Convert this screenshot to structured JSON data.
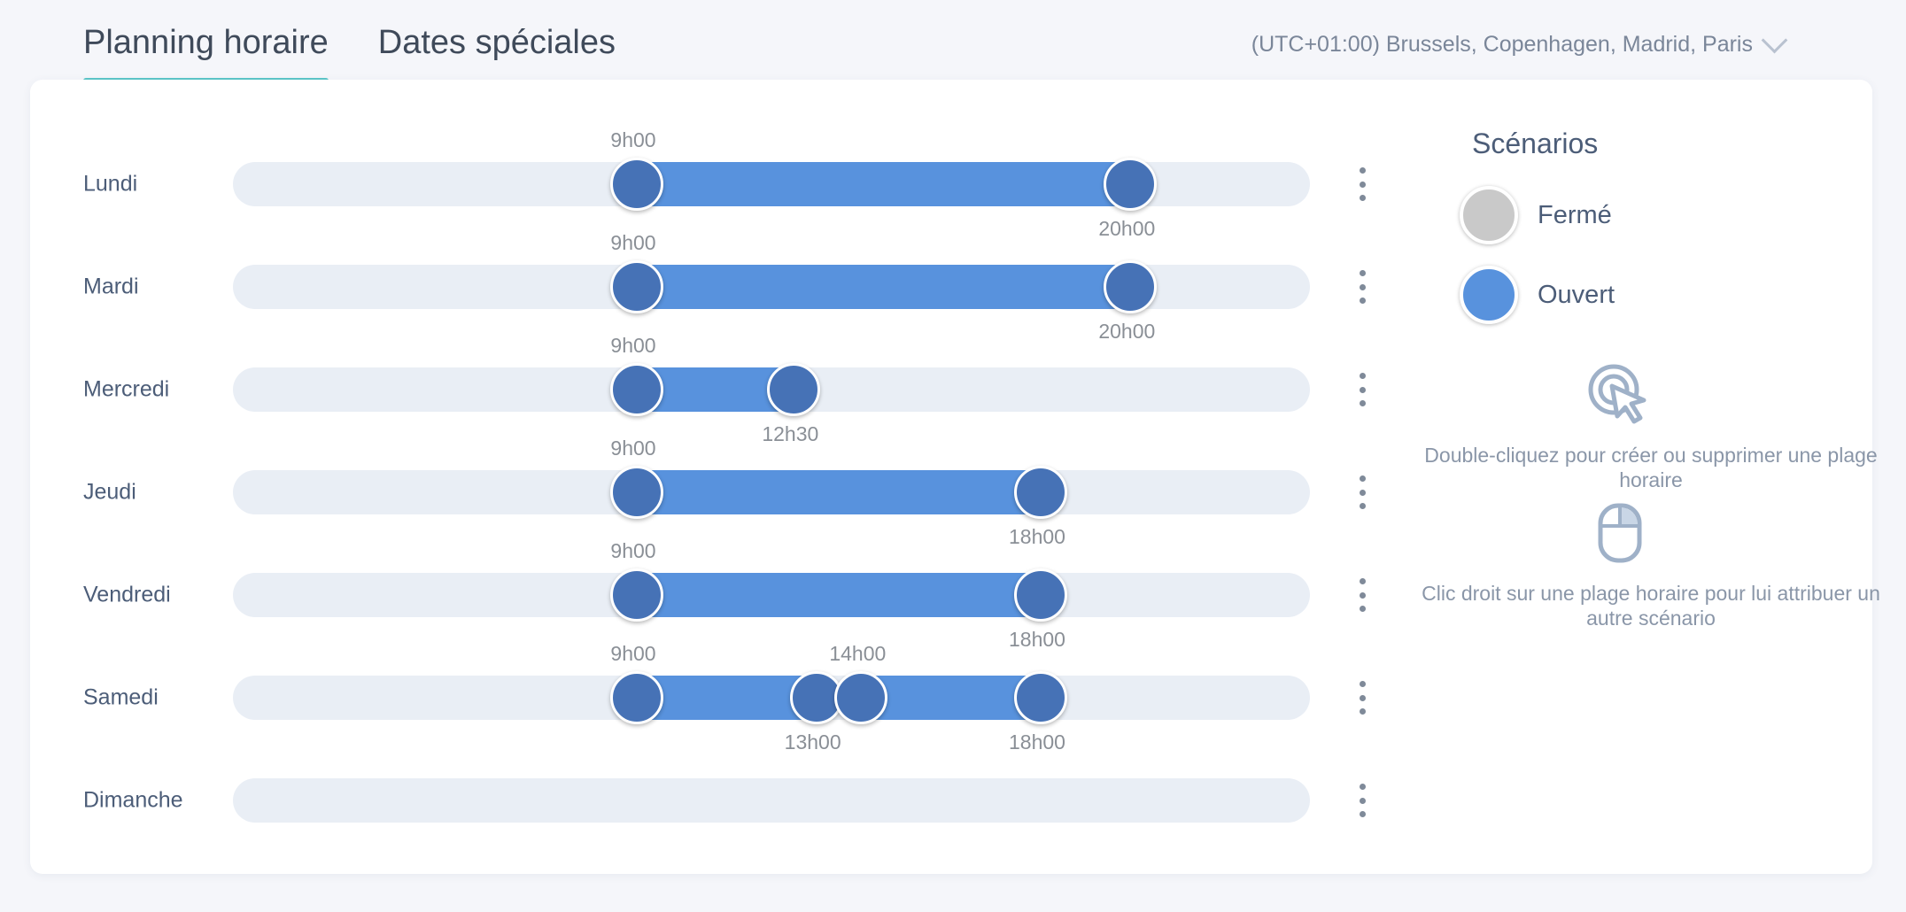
{
  "tabs": [
    {
      "label": "Planning horaire",
      "active": true
    },
    {
      "label": "Dates spéciales",
      "active": false
    }
  ],
  "timezone": {
    "label": "(UTC+01:00) Brussels, Copenhagen, Madrid, Paris",
    "icon": "chevron-down-icon"
  },
  "schedule": {
    "range_hours": [
      0,
      24
    ],
    "days": [
      {
        "name": "Lundi",
        "ranges": [
          {
            "start": 9,
            "end": 20,
            "start_label": "9h00",
            "end_label": "20h00"
          }
        ]
      },
      {
        "name": "Mardi",
        "ranges": [
          {
            "start": 9,
            "end": 20,
            "start_label": "9h00",
            "end_label": "20h00"
          }
        ]
      },
      {
        "name": "Mercredi",
        "ranges": [
          {
            "start": 9,
            "end": 12.5,
            "start_label": "9h00",
            "end_label": "12h30"
          }
        ]
      },
      {
        "name": "Jeudi",
        "ranges": [
          {
            "start": 9,
            "end": 18,
            "start_label": "9h00",
            "end_label": "18h00"
          }
        ]
      },
      {
        "name": "Vendredi",
        "ranges": [
          {
            "start": 9,
            "end": 18,
            "start_label": "9h00",
            "end_label": "18h00"
          }
        ]
      },
      {
        "name": "Samedi",
        "ranges": [
          {
            "start": 9,
            "end": 13,
            "start_label": "9h00",
            "end_label": "13h00"
          },
          {
            "start": 14,
            "end": 18,
            "start_label": "14h00",
            "end_label": "18h00"
          }
        ]
      },
      {
        "name": "Dimanche",
        "ranges": []
      }
    ]
  },
  "scenarios": {
    "title": "Scénarios",
    "items": [
      {
        "label": "Fermé",
        "color": "#c9c9c9"
      },
      {
        "label": "Ouvert",
        "color": "#5892dd"
      }
    ]
  },
  "hints": {
    "double_click": "Double-cliquez pour créer ou supprimer une plage horaire",
    "right_click": "Clic droit sur une plage horaire pour lui attribuer un autre scénario",
    "double_click_icon": "double-click-cursor-icon",
    "right_click_icon": "mouse-right-click-icon"
  },
  "colors": {
    "accent": "#5cc6c8",
    "range": "#5892dd",
    "handle": "#4672b6",
    "track": "#e9eef5"
  }
}
